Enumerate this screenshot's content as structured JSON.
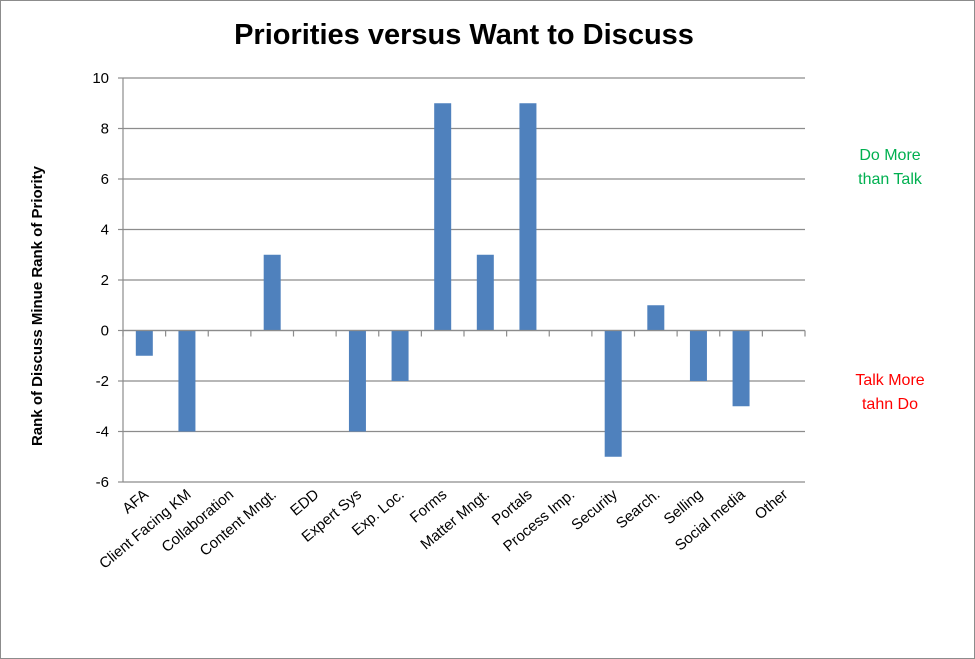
{
  "chart_data": {
    "type": "bar",
    "title": "Priorities versus Want to Discuss",
    "xlabel": "",
    "ylabel": "Rank of Discuss Minue Rank of Priority",
    "categories": [
      "AFA",
      "Client Facing KM",
      "Collaboration",
      "Content Mngt.",
      "EDD",
      "Expert Sys",
      "Exp. Loc.",
      "Forms",
      "Matter Mngt.",
      "Portals",
      "Process Imp.",
      "Security",
      "Search.",
      "Selling",
      "Social media",
      "Other"
    ],
    "values": [
      -1,
      -4,
      0,
      3,
      0,
      -4,
      -2,
      9,
      3,
      9,
      0,
      -5,
      1,
      -2,
      -3,
      0
    ],
    "ylim": [
      -6,
      10
    ],
    "yticks": [
      10,
      8,
      6,
      4,
      2,
      0,
      -2,
      -4,
      -6
    ],
    "grid": true,
    "legend": "none",
    "bar_color": "#4f81bd",
    "annotations": [
      {
        "lines": [
          "Do More",
          "than Talk"
        ],
        "color": "#00b050"
      },
      {
        "lines": [
          "Talk More",
          "tahn Do"
        ],
        "color": "#ff0000"
      }
    ]
  }
}
